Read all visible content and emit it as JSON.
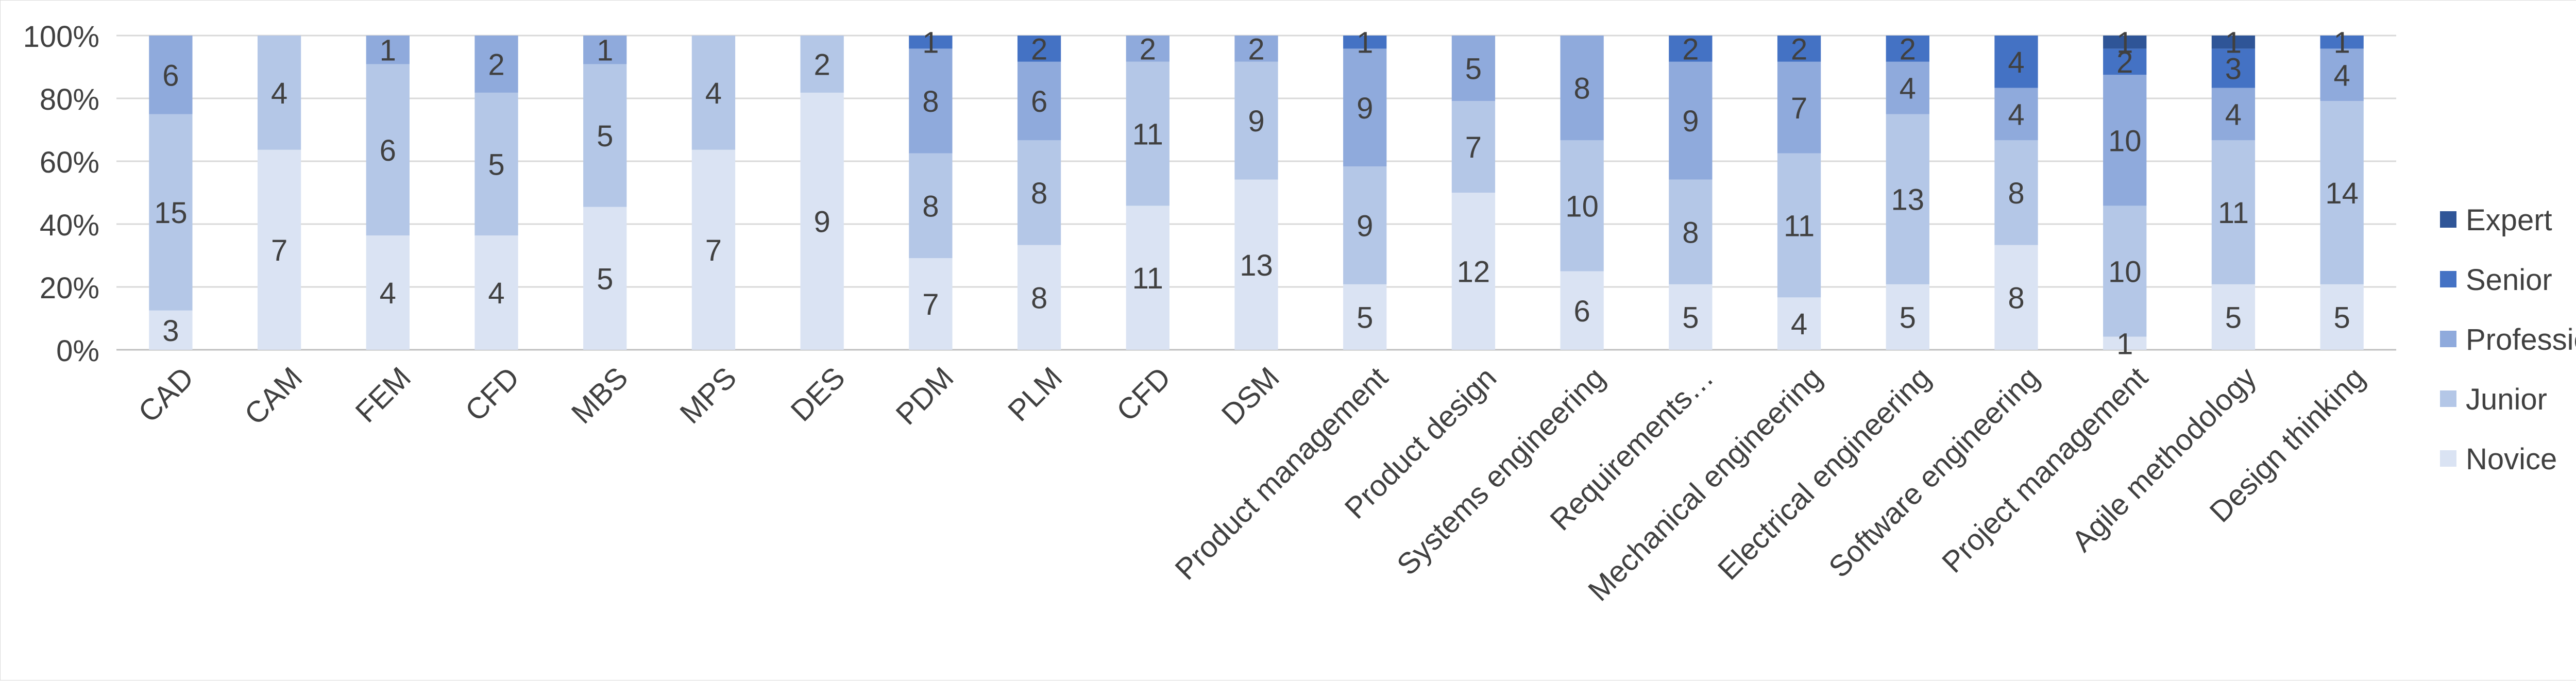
{
  "chart_data": {
    "type": "bar",
    "stacked": "percent",
    "title": "",
    "xlabel": "",
    "ylabel": "",
    "ylim": [
      0,
      100
    ],
    "y_ticks": [
      "0%",
      "20%",
      "40%",
      "60%",
      "80%",
      "100%"
    ],
    "grid": true,
    "legend_position": "right",
    "categories": [
      "CAD",
      "CAM",
      "FEM",
      "CFD",
      "MBS",
      "MPS",
      "DES",
      "PDM",
      "PLM",
      "CFD",
      "DSM",
      "Product management",
      "Product design",
      "Systems engineering",
      "Requirements…",
      "Mechanical engineering",
      "Electrical engineering",
      "Software engineering",
      "Project management",
      "Agile methodology",
      "Design thinking"
    ],
    "series": [
      {
        "name": "Novice",
        "color": "#dae3f3",
        "values": [
          3,
          7,
          4,
          4,
          5,
          7,
          9,
          7,
          8,
          11,
          13,
          5,
          12,
          6,
          5,
          4,
          5,
          8,
          1,
          5,
          5
        ]
      },
      {
        "name": "Junior",
        "color": "#b4c7e7",
        "values": [
          15,
          4,
          6,
          5,
          5,
          4,
          2,
          8,
          8,
          11,
          9,
          9,
          7,
          10,
          8,
          11,
          13,
          8,
          10,
          11,
          14
        ]
      },
      {
        "name": "Professional",
        "color": "#8faadc",
        "values": [
          6,
          0,
          1,
          2,
          1,
          0,
          0,
          8,
          6,
          2,
          2,
          9,
          5,
          8,
          9,
          7,
          4,
          4,
          10,
          4,
          4
        ]
      },
      {
        "name": "Senior",
        "color": "#4472c4",
        "values": [
          0,
          0,
          0,
          0,
          0,
          0,
          0,
          1,
          2,
          0,
          0,
          1,
          0,
          0,
          2,
          2,
          2,
          4,
          2,
          3,
          1
        ]
      },
      {
        "name": "Expert",
        "color": "#2f5597",
        "values": [
          0,
          0,
          0,
          0,
          0,
          0,
          0,
          0,
          0,
          0,
          0,
          0,
          0,
          0,
          0,
          0,
          0,
          0,
          1,
          1,
          0
        ]
      }
    ],
    "legend_order": [
      "Expert",
      "Senior",
      "Professional",
      "Junior",
      "Novice"
    ]
  }
}
